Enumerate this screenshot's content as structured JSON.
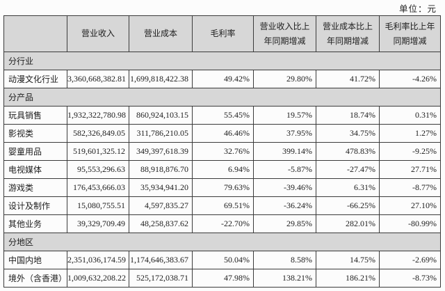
{
  "unit_label": "单位：元",
  "table": {
    "columns": [
      "",
      "营业收入",
      "营业成本",
      "毛利率",
      "营业收入比上年同期增减",
      "营业成本比上年同期增减",
      "毛利率比上年同期增减"
    ],
    "sections": [
      {
        "title": "分行业",
        "rows": [
          [
            "动漫文化行业",
            "3,360,668,382.81",
            "1,699,818,422.38",
            "49.42%",
            "29.80%",
            "41.72%",
            "-4.26%"
          ]
        ]
      },
      {
        "title": "分产品",
        "rows": [
          [
            "玩具销售",
            "1,932,322,780.98",
            "860,924,103.15",
            "55.45%",
            "19.57%",
            "18.74%",
            "0.31%"
          ],
          [
            "影视类",
            "582,326,849.05",
            "311,786,210.05",
            "46.46%",
            "37.95%",
            "34.75%",
            "1.27%"
          ],
          [
            "婴童用品",
            "519,601,325.12",
            "349,397,618.39",
            "32.76%",
            "399.14%",
            "478.83%",
            "-9.25%"
          ],
          [
            "电视媒体",
            "95,553,296.63",
            "88,918,876.70",
            "6.94%",
            "-5.87%",
            "-27.47%",
            "27.71%"
          ],
          [
            "游戏类",
            "176,453,666.03",
            "35,934,941.20",
            "79.63%",
            "-39.46%",
            "6.31%",
            "-8.77%"
          ],
          [
            "设计及制作",
            "15,080,755.51",
            "4,597,835.27",
            "69.51%",
            "-36.24%",
            "-66.25%",
            "27.10%"
          ],
          [
            "其他业务",
            "39,329,709.49",
            "48,258,837.62",
            "-22.70%",
            "29.85%",
            "282.01%",
            "-80.99%"
          ]
        ]
      },
      {
        "title": "分地区",
        "rows": [
          [
            "中国内地",
            "2,351,036,174.59",
            "1,174,646,383.67",
            "50.04%",
            "8.58%",
            "14.75%",
            "-2.69%"
          ],
          [
            "境外（含香港）",
            "1,009,632,208.22",
            "525,172,038.71",
            "47.98%",
            "138.21%",
            "186.21%",
            "-8.73%"
          ]
        ]
      }
    ]
  },
  "colors": {
    "header_bg": "#d7d7d7",
    "section_bg": "#d7d7d7",
    "border": "#3a3a3a",
    "text": "#1c1c1c",
    "page_bg": "#fcfcfc"
  }
}
